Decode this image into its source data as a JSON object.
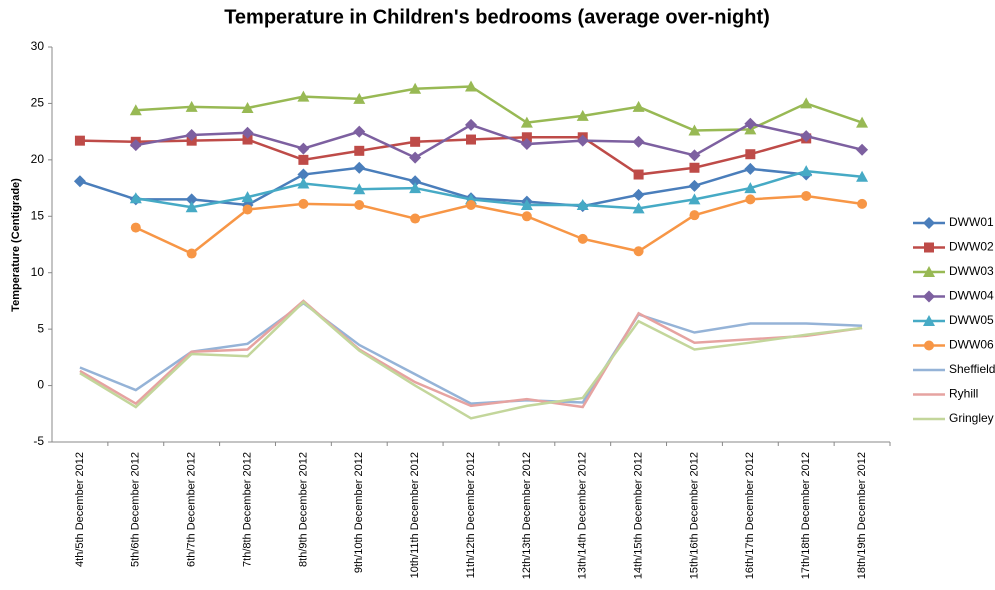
{
  "chart_data": {
    "type": "line",
    "title": "Temperature in Children's bedrooms (average over-night)",
    "y_label": "Temperature (Centigrade)",
    "categories": [
      "4th/5th December 2012",
      "5th/6th December 2012",
      "6th/7th December 2012",
      "7th/8th December 2012",
      "8th/9th December 2012",
      "9th/10th December 2012",
      "10th/11th December 2012",
      "11th/12th December 2012",
      "12th/13th December 2012",
      "13th/14th December 2012",
      "14th/15th December 2012",
      "15th/16th December 2012",
      "16th/17th December 2012",
      "17th/18th December 2012",
      "18th/19th December 2012"
    ],
    "ylim": [
      -5,
      30
    ],
    "yticks": [
      -5,
      0,
      5,
      10,
      15,
      20,
      25,
      30
    ],
    "grid": false,
    "legend": "right",
    "series": [
      {
        "name": "DWW01",
        "color": "#4a7ebb",
        "marker": "diamond",
        "values": [
          18.1,
          16.5,
          16.5,
          16.0,
          18.7,
          19.3,
          18.1,
          16.6,
          16.3,
          15.9,
          16.9,
          17.7,
          19.2,
          18.7,
          null
        ]
      },
      {
        "name": "DWW02",
        "color": "#be4b48",
        "marker": "square",
        "values": [
          21.7,
          21.6,
          21.7,
          21.8,
          20.0,
          20.8,
          21.6,
          21.8,
          22.0,
          22.0,
          18.7,
          19.3,
          20.5,
          21.9,
          null
        ]
      },
      {
        "name": "DWW03",
        "color": "#98b954",
        "marker": "triangle",
        "values": [
          null,
          24.4,
          24.7,
          24.6,
          25.6,
          25.4,
          26.3,
          26.5,
          23.3,
          23.9,
          24.7,
          22.6,
          22.7,
          25.0,
          23.3
        ]
      },
      {
        "name": "DWW04",
        "color": "#7d60a0",
        "marker": "diamond",
        "values": [
          null,
          21.3,
          22.2,
          22.4,
          21.0,
          22.5,
          20.2,
          23.1,
          21.4,
          21.7,
          21.6,
          20.4,
          23.2,
          22.1,
          20.9
        ]
      },
      {
        "name": "DWW05",
        "color": "#46aac5",
        "marker": "triangle",
        "values": [
          null,
          16.6,
          15.8,
          16.7,
          17.9,
          17.4,
          17.5,
          16.5,
          16.0,
          16.0,
          15.7,
          16.5,
          17.5,
          19.0,
          18.5
        ]
      },
      {
        "name": "DWW06",
        "color": "#f79646",
        "marker": "circle",
        "values": [
          null,
          14.0,
          11.7,
          15.6,
          16.1,
          16.0,
          14.8,
          16.0,
          15.0,
          13.0,
          11.9,
          15.1,
          16.5,
          16.8,
          16.1
        ]
      },
      {
        "name": "Sheffield",
        "color": "#95b3d7",
        "marker": "none",
        "values": [
          1.6,
          -0.4,
          3.0,
          3.7,
          7.3,
          3.6,
          1.0,
          -1.6,
          -1.3,
          -1.5,
          6.3,
          4.7,
          5.5,
          5.5,
          5.3
        ]
      },
      {
        "name": "Ryhill",
        "color": "#e6a3a1",
        "marker": "none",
        "values": [
          1.3,
          -1.6,
          3.0,
          3.2,
          7.5,
          3.2,
          0.3,
          -1.8,
          -1.2,
          -1.9,
          6.4,
          3.8,
          4.1,
          4.4,
          5.1
        ]
      },
      {
        "name": "Gringley",
        "color": "#c3d69b",
        "marker": "none",
        "values": [
          1.1,
          -1.9,
          2.8,
          2.6,
          7.4,
          3.1,
          0.0,
          -2.9,
          -1.8,
          -1.1,
          5.7,
          3.2,
          3.8,
          4.5,
          5.1
        ]
      }
    ]
  }
}
